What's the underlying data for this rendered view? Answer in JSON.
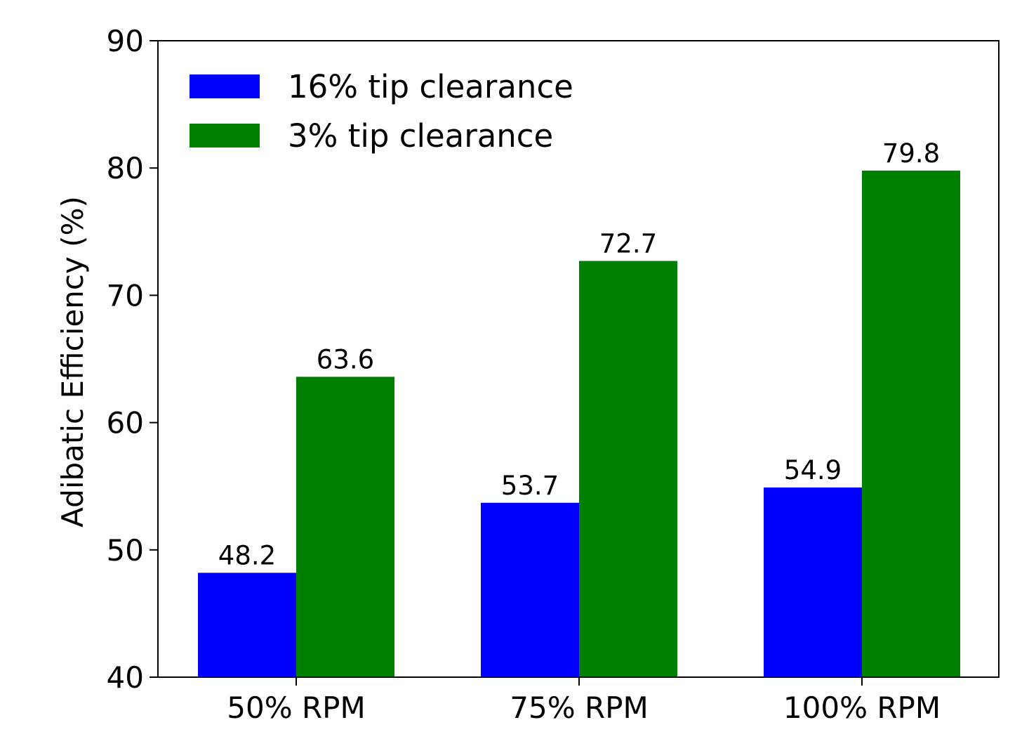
{
  "chart_data": {
    "type": "bar",
    "categories": [
      "50% RPM",
      "75% RPM",
      "100% RPM"
    ],
    "series": [
      {
        "name": "16% tip clearance",
        "values": [
          48.2,
          53.7,
          54.9
        ],
        "color": "#0000ff"
      },
      {
        "name": "3% tip clearance",
        "values": [
          63.6,
          72.7,
          79.8
        ],
        "color": "#008000"
      }
    ],
    "data_labels": [
      [
        "48.2",
        "53.7",
        "54.9"
      ],
      [
        "63.6",
        "72.7",
        "79.8"
      ]
    ],
    "title": "",
    "xlabel": "",
    "ylabel": "Adibatic Efficiency (%)",
    "ylim": [
      40,
      90
    ],
    "yticks": [
      40,
      50,
      60,
      70,
      80,
      90
    ],
    "grid": false,
    "legend_position": "top-left"
  }
}
